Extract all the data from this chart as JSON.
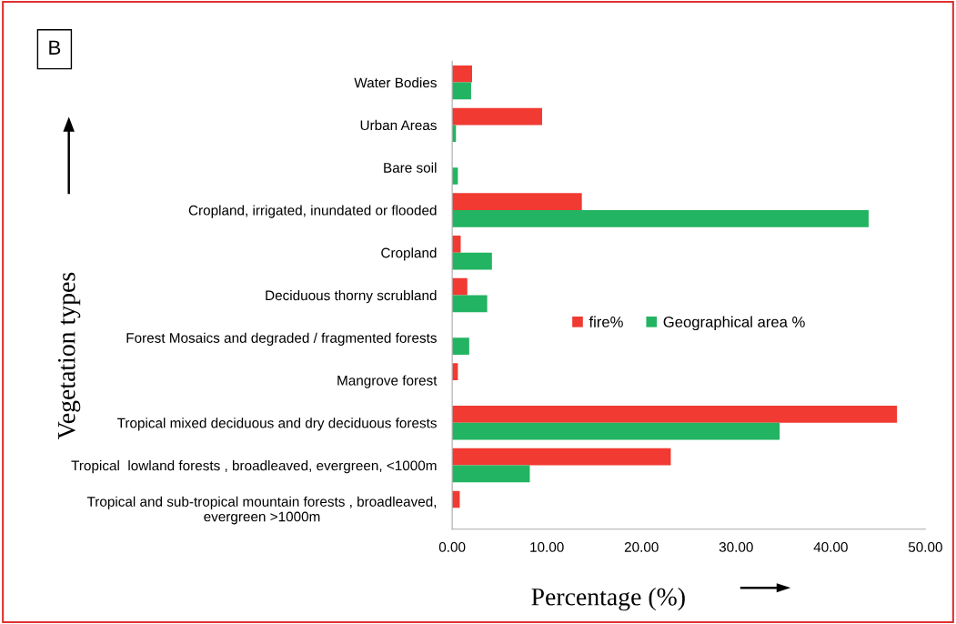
{
  "chart_data": {
    "type": "bar",
    "orientation": "horizontal",
    "categories": [
      "Water Bodies",
      "Urban Areas",
      "Bare soil",
      "Cropland, irrigated, inundated or flooded",
      "Cropland",
      "Deciduous thorny scrubland",
      "Forest Mosaics and degraded / fragmented forests",
      "Mangrove forest",
      "Tropical mixed deciduous and dry deciduous forests",
      "Tropical  lowland forests , broadleaved, evergreen, <1000m",
      "Tropical and sub-tropical mountain forests , broadleaved,\nevergreen >1000m"
    ],
    "series": [
      {
        "name": "fire%",
        "color": "#f03a32",
        "values": [
          2.1,
          9.5,
          0,
          13.7,
          0.9,
          1.6,
          0,
          0.6,
          47.0,
          23.1,
          0.8
        ]
      },
      {
        "name": "Geographical area %",
        "color": "#22b462",
        "values": [
          2.0,
          0.4,
          0.6,
          44.0,
          4.2,
          3.7,
          1.8,
          0,
          34.6,
          8.2,
          null
        ]
      }
    ],
    "xlim": [
      0,
      50
    ],
    "xticks": [
      {
        "value": 0,
        "label": "0.00"
      },
      {
        "value": 10,
        "label": "10.00"
      },
      {
        "value": 20,
        "label": "20.00"
      },
      {
        "value": 30,
        "label": "30.00"
      },
      {
        "value": 40,
        "label": "40.00"
      },
      {
        "value": 50,
        "label": "50.00"
      }
    ],
    "xlabel": "Percentage (%)",
    "ylabel": "Vegetation types",
    "annotations": [
      "B"
    ],
    "legend": "center",
    "grid": false
  }
}
